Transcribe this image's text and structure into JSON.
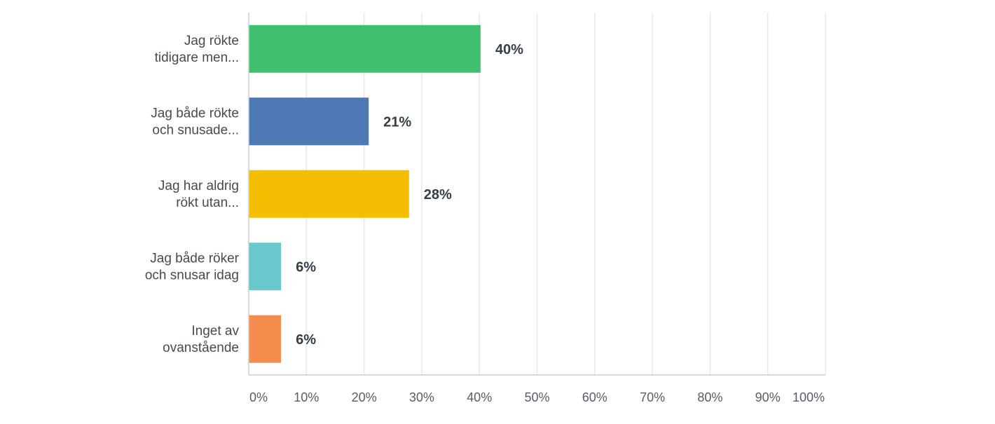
{
  "chart_data": {
    "type": "bar",
    "orientation": "horizontal",
    "categories": [
      [
        "Jag rökte",
        "tidigare men..."
      ],
      [
        "Jag både rökte",
        "och snusade..."
      ],
      [
        "Jag har aldrig",
        "rökt utan..."
      ],
      [
        "Jag både röker",
        "och snusar idag"
      ],
      [
        "Inget av",
        "ovanstående"
      ]
    ],
    "values": [
      40.2,
      20.8,
      27.8,
      5.6,
      5.6
    ],
    "value_labels": [
      "40%",
      "21%",
      "28%",
      "6%",
      "6%"
    ],
    "colors": [
      "#40bf6e",
      "#4d79b5",
      "#f5be00",
      "#69c8cb",
      "#f58d4f"
    ],
    "xlim": [
      0,
      100
    ],
    "x_ticks": [
      0,
      10,
      20,
      30,
      40,
      50,
      60,
      70,
      80,
      90,
      100
    ],
    "x_tick_labels": [
      "0%",
      "10%",
      "20%",
      "30%",
      "40%",
      "50%",
      "60%",
      "70%",
      "80%",
      "90%",
      "100%"
    ],
    "grid": true,
    "title": "",
    "xlabel": "",
    "ylabel": ""
  }
}
